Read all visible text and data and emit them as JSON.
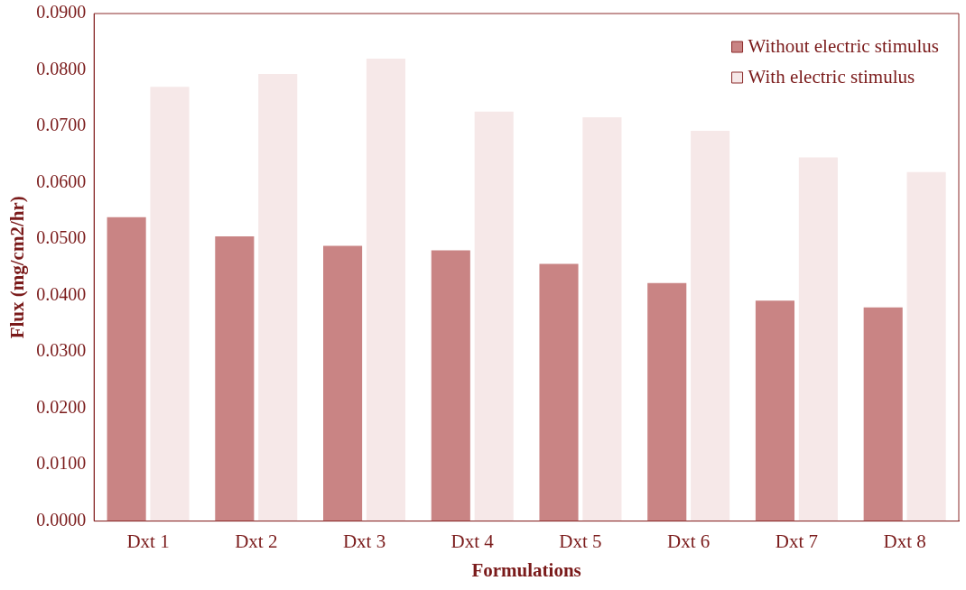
{
  "chart_data": {
    "type": "bar",
    "xlabel": "Formulations",
    "ylabel": "Flux (mg/cm2/hr)",
    "categories": [
      "Dxt 1",
      "Dxt 2",
      "Dxt 3",
      "Dxt 4",
      "Dxt 5",
      "Dxt 6",
      "Dxt 7",
      "Dxt 8"
    ],
    "series": [
      {
        "name": "Without electric stimulus",
        "color": "#c98484",
        "values": [
          0.0539,
          0.0505,
          0.0488,
          0.048,
          0.0456,
          0.0422,
          0.0391,
          0.0379
        ]
      },
      {
        "name": "With electric stimulus",
        "color": "#f6e8e8",
        "values": [
          0.077,
          0.0793,
          0.082,
          0.0726,
          0.0716,
          0.0692,
          0.0645,
          0.0619
        ]
      }
    ],
    "ylim": [
      0,
      0.09
    ],
    "yticks": [
      {
        "value": 0,
        "label": "0.0000"
      },
      {
        "value": 0.01,
        "label": "0.0100"
      },
      {
        "value": 0.02,
        "label": "0.0200"
      },
      {
        "value": 0.03,
        "label": "0.0300"
      },
      {
        "value": 0.04,
        "label": "0.0400"
      },
      {
        "value": 0.05,
        "label": "0.0500"
      },
      {
        "value": 0.06,
        "label": "0.0600"
      },
      {
        "value": 0.07,
        "label": "0.0700"
      },
      {
        "value": 0.08,
        "label": "0.0800"
      },
      {
        "value": 0.09,
        "label": "0.0900"
      }
    ],
    "grid": false,
    "legend": "top right"
  }
}
